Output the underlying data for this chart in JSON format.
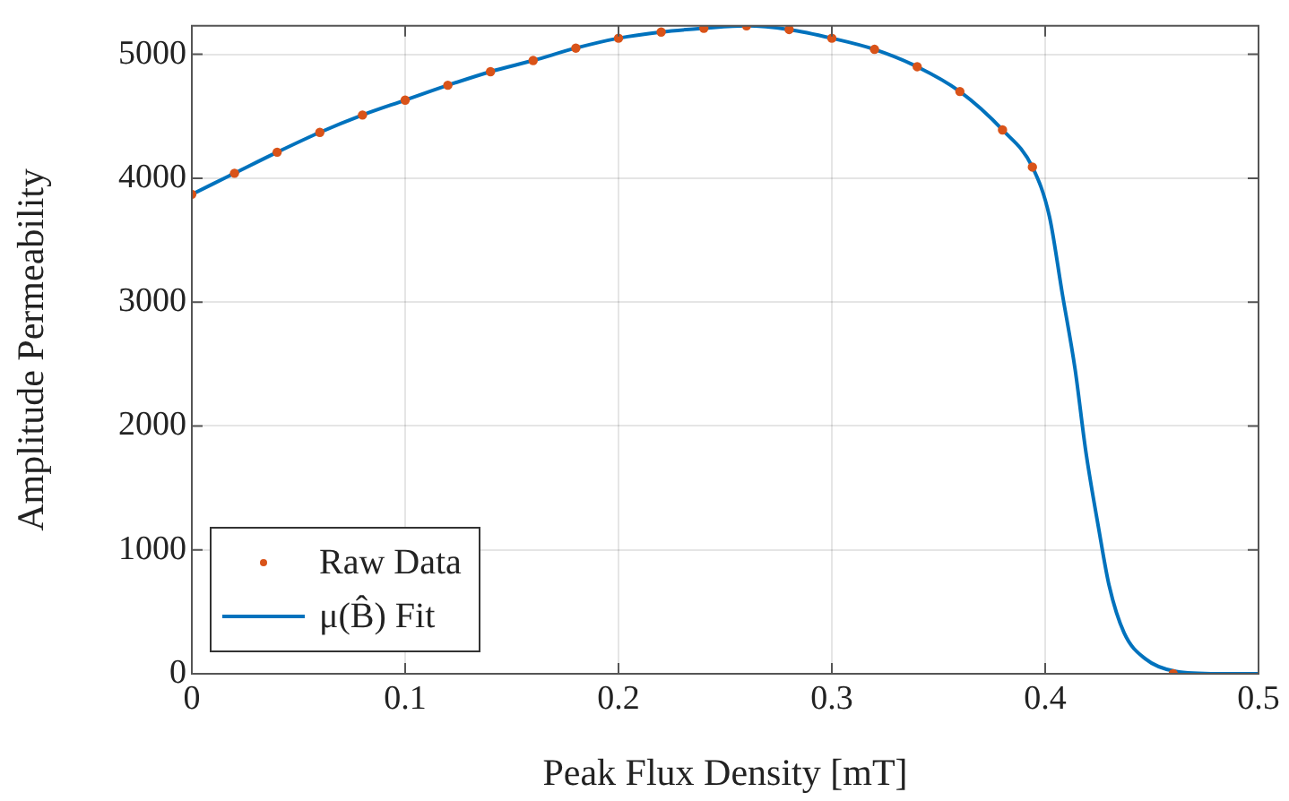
{
  "chart_data": {
    "type": "line",
    "xlabel": "Peak Flux Density [mT]",
    "ylabel": "Amplitude Permeability",
    "xlim": [
      0,
      0.5
    ],
    "xticks": [
      0,
      0.1,
      0.2,
      0.3,
      0.4,
      0.5
    ],
    "ylim": [
      0,
      5230
    ],
    "yticks": [
      0,
      1000,
      2000,
      3000,
      4000,
      5000
    ],
    "grid": true,
    "legend": "bottom left",
    "series": [
      {
        "name": "Raw Data",
        "type": "scatter",
        "marker": "circle",
        "color": "#d95319",
        "x": [
          0,
          0.02,
          0.04,
          0.06,
          0.08,
          0.1,
          0.12,
          0.14,
          0.16,
          0.18,
          0.2,
          0.22,
          0.24,
          0.26,
          0.28,
          0.3,
          0.32,
          0.34,
          0.36,
          0.38,
          0.394,
          0.46
        ],
        "values": [
          3870,
          4040,
          4210,
          4370,
          4510,
          4630,
          4750,
          4860,
          4950,
          5050,
          5130,
          5180,
          5210,
          5230,
          5200,
          5130,
          5040,
          4900,
          4700,
          4390,
          4090,
          0
        ]
      },
      {
        "name": "μ(B̂) Fit",
        "marker": "none",
        "line_style": "solid",
        "color": "#0072bd",
        "x": [
          0,
          0.02,
          0.04,
          0.06,
          0.08,
          0.1,
          0.12,
          0.14,
          0.16,
          0.18,
          0.2,
          0.22,
          0.24,
          0.26,
          0.28,
          0.3,
          0.32,
          0.34,
          0.36,
          0.38,
          0.394,
          0.402,
          0.408,
          0.414,
          0.419,
          0.425,
          0.43,
          0.437,
          0.447,
          0.461,
          0.481,
          0.5
        ],
        "values": [
          3870,
          4040,
          4210,
          4370,
          4510,
          4630,
          4750,
          4860,
          4950,
          5050,
          5130,
          5180,
          5210,
          5230,
          5200,
          5130,
          5040,
          4900,
          4700,
          4390,
          4090,
          3690,
          3070,
          2460,
          1800,
          1180,
          710,
          330,
          120,
          20,
          0,
          0
        ]
      }
    ]
  }
}
